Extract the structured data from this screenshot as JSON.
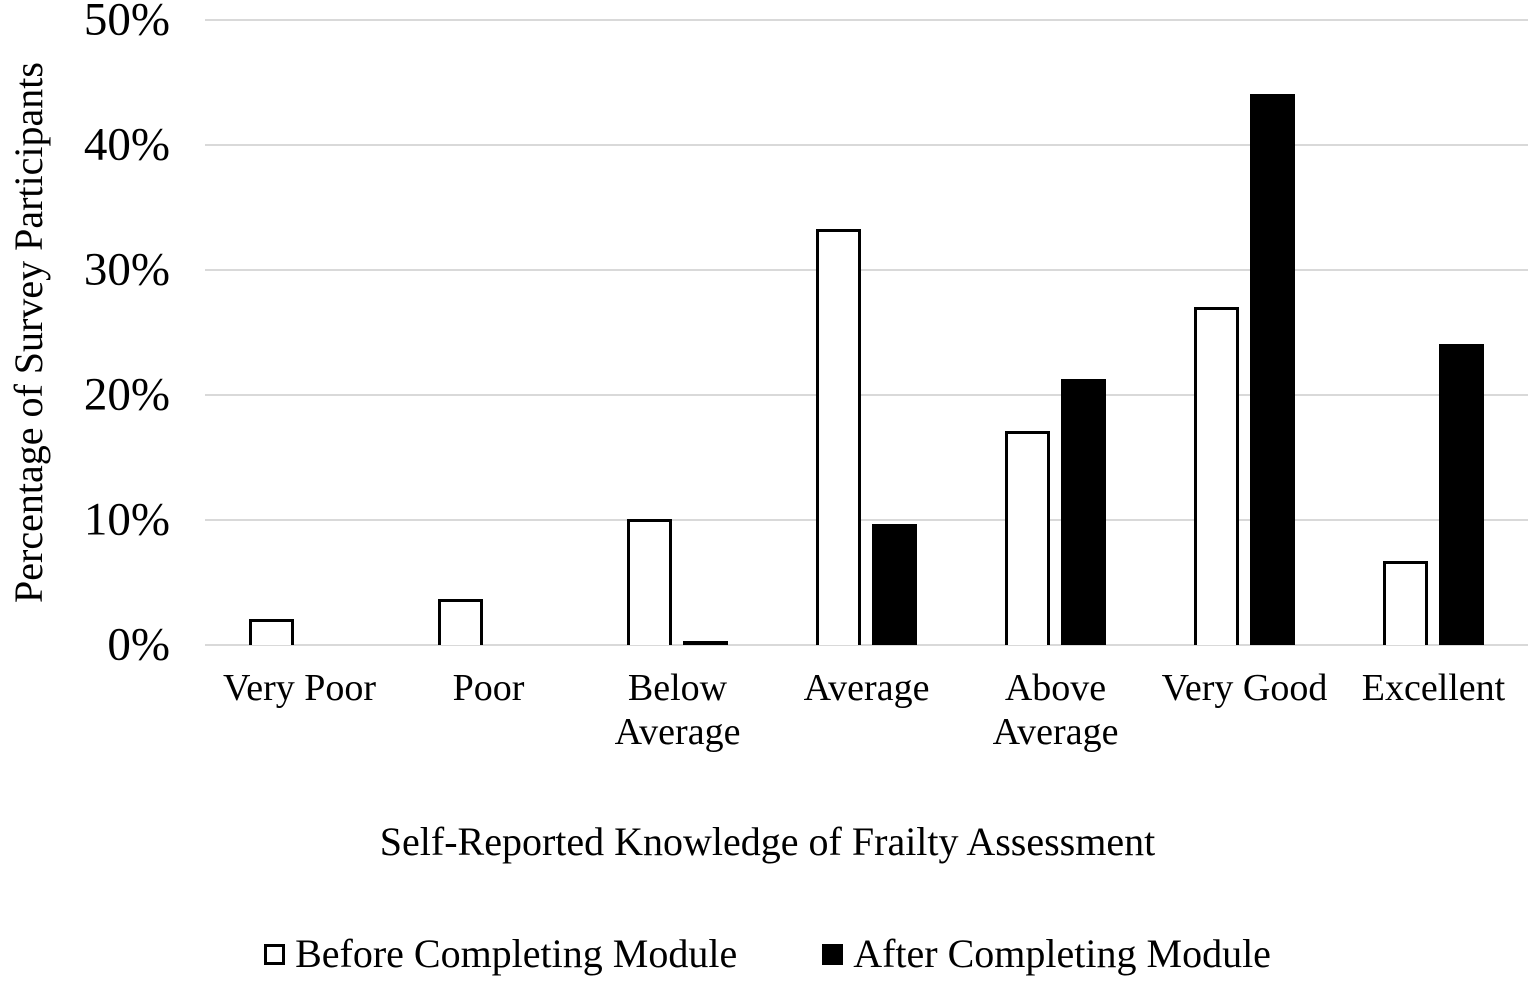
{
  "chart_data": {
    "type": "bar",
    "title": "",
    "xlabel": "Self-Reported Knowledge of Frailty Assessment",
    "ylabel": "Percentage of Survey Participants",
    "categories": [
      "Very Poor",
      "Poor",
      "Below Average",
      "Average",
      "Above Average",
      "Very Good",
      "Excellent"
    ],
    "series": [
      {
        "name": "Before Completing Module",
        "fill": "#ffffff",
        "border": "#000000",
        "values": [
          2.1,
          3.7,
          10.1,
          33.3,
          17.1,
          27.0,
          6.7
        ]
      },
      {
        "name": "After Completing Module",
        "fill": "#000000",
        "border": "#000000",
        "values": [
          0,
          0,
          0.3,
          9.7,
          21.3,
          44.1,
          24.1
        ]
      }
    ],
    "ylim": [
      0,
      50
    ],
    "ytick_step": 10,
    "ytick_labels": [
      "0%",
      "10%",
      "20%",
      "30%",
      "40%",
      "50%"
    ],
    "grid": true,
    "gridline_color": "#d9d9d9",
    "background_color": "#ffffff",
    "text_color": "#000000",
    "legend_position": "bottom"
  }
}
